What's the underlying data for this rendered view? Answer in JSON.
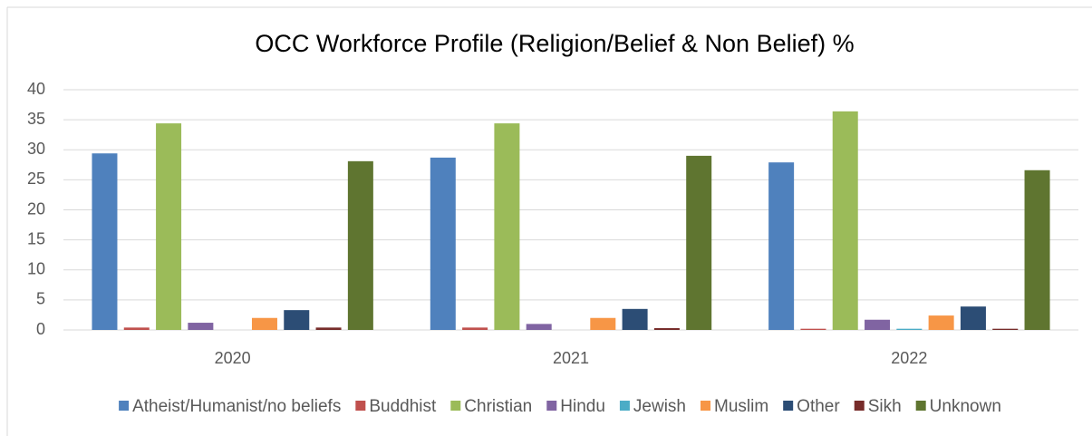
{
  "chart_data": {
    "type": "bar",
    "title": "OCC Workforce Profile (Religion/Belief & Non Belief) %",
    "categories": [
      "2020",
      "2021",
      "2022"
    ],
    "series": [
      {
        "name": "Atheist/Humanist/no beliefs",
        "color": "#4f81bd",
        "values": [
          29.4,
          28.7,
          27.9
        ]
      },
      {
        "name": "Buddhist",
        "color": "#c0504d",
        "values": [
          0.4,
          0.4,
          0.2
        ]
      },
      {
        "name": "Christian",
        "color": "#9bbb59",
        "values": [
          34.4,
          34.4,
          36.4
        ]
      },
      {
        "name": "Hindu",
        "color": "#8064a2",
        "values": [
          1.2,
          1.0,
          1.7
        ]
      },
      {
        "name": "Jewish",
        "color": "#4bacc6",
        "values": [
          0,
          0,
          0.2
        ]
      },
      {
        "name": "Muslim",
        "color": "#f79646",
        "values": [
          2.0,
          2.0,
          2.4
        ]
      },
      {
        "name": "Other",
        "color": "#2c4d75",
        "values": [
          3.3,
          3.5,
          3.9
        ]
      },
      {
        "name": "Sikh",
        "color": "#772c2a",
        "values": [
          0.4,
          0.3,
          0.2
        ]
      },
      {
        "name": "Unknown",
        "color": "#5f7530",
        "values": [
          28.1,
          29.0,
          26.6
        ]
      }
    ],
    "ylim": [
      0,
      40
    ],
    "yticks": [
      0,
      5,
      10,
      15,
      20,
      25,
      30,
      35,
      40
    ],
    "grid": true,
    "legend": "bottom"
  }
}
